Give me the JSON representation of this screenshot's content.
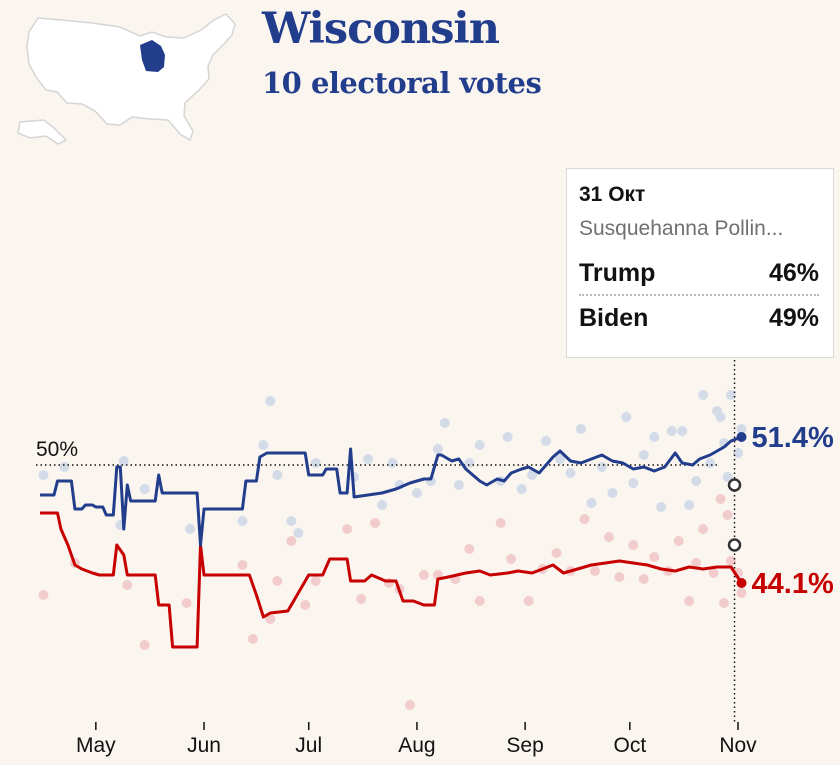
{
  "header": {
    "title": "Wisconsin",
    "subtitle": "10 electoral votes"
  },
  "map": {
    "land_color": "#ffffff",
    "border_color": "#d5d5d5",
    "highlight_color": "#213d8c"
  },
  "tooltip": {
    "date": "31 Окт",
    "pollster": "Susquehanna Pollin...",
    "rows": [
      {
        "name": "Trump",
        "value": "46%"
      },
      {
        "name": "Biden",
        "value": "49%"
      }
    ]
  },
  "chart_data": {
    "type": "line",
    "x_axis": {
      "ticks": [
        "May",
        "Jun",
        "Jul",
        "Aug",
        "Sep",
        "Oct",
        "Nov"
      ],
      "range": [
        "2020-04-15",
        "2020-11-03"
      ]
    },
    "y_axis": {
      "range": [
        36,
        58
      ],
      "tick_labels_shown": false
    },
    "reference_line": {
      "value": 50,
      "label": "50%"
    },
    "grid": false,
    "legend": "none",
    "colors": {
      "biden": "#213d8c",
      "trump": "#c70000",
      "biden_dots": "#d3dbe8",
      "trump_dots": "#f2cccc"
    },
    "series": [
      {
        "end_label": "51.4%",
        "color": "#213d8c",
        "points": [
          [
            "04-15",
            48.5
          ],
          [
            "04-19",
            48.5
          ],
          [
            "04-20",
            49.2
          ],
          [
            "04-24",
            49.2
          ],
          [
            "04-25",
            47.8
          ],
          [
            "04-27",
            47.8
          ],
          [
            "04-28",
            48.0
          ],
          [
            "04-30",
            48.0
          ],
          [
            "05-01",
            47.9
          ],
          [
            "05-03",
            47.9
          ],
          [
            "05-04",
            47.5
          ],
          [
            "05-06",
            47.5
          ],
          [
            "05-07",
            49.9
          ],
          [
            "05-08",
            49.9
          ],
          [
            "05-09",
            46.8
          ],
          [
            "05-10",
            49.0
          ],
          [
            "05-11",
            48.2
          ],
          [
            "05-18",
            48.2
          ],
          [
            "05-19",
            49.5
          ],
          [
            "05-20",
            48.6
          ],
          [
            "05-30",
            48.6
          ],
          [
            "05-31",
            46.0
          ],
          [
            "06-01",
            47.8
          ],
          [
            "06-12",
            47.8
          ],
          [
            "06-13",
            49.2
          ],
          [
            "06-16",
            49.2
          ],
          [
            "06-17",
            50.4
          ],
          [
            "06-19",
            50.6
          ],
          [
            "06-30",
            50.6
          ],
          [
            "07-01",
            49.5
          ],
          [
            "07-05",
            49.5
          ],
          [
            "07-06",
            49.8
          ],
          [
            "07-09",
            49.8
          ],
          [
            "07-10",
            48.6
          ],
          [
            "07-12",
            48.6
          ],
          [
            "07-13",
            50.8
          ],
          [
            "07-14",
            48.4
          ],
          [
            "07-22",
            48.6
          ],
          [
            "07-26",
            48.8
          ],
          [
            "07-30",
            49.1
          ],
          [
            "08-03",
            49.3
          ],
          [
            "08-05",
            49.3
          ],
          [
            "08-07",
            50.5
          ],
          [
            "08-08",
            50.5
          ],
          [
            "08-11",
            50.2
          ],
          [
            "08-13",
            50.3
          ],
          [
            "08-15",
            49.8
          ],
          [
            "08-17",
            49.5
          ],
          [
            "08-19",
            49.2
          ],
          [
            "08-21",
            49.0
          ],
          [
            "08-24",
            49.3
          ],
          [
            "08-26",
            49.2
          ],
          [
            "08-28",
            49.6
          ],
          [
            "08-31",
            49.8
          ],
          [
            "09-02",
            49.9
          ],
          [
            "09-05",
            49.6
          ],
          [
            "09-07",
            50.0
          ],
          [
            "09-09",
            50.4
          ],
          [
            "09-11",
            50.7
          ],
          [
            "09-14",
            50.2
          ],
          [
            "09-17",
            50.1
          ],
          [
            "09-20",
            50.3
          ],
          [
            "09-23",
            50.5
          ],
          [
            "09-26",
            50.2
          ],
          [
            "09-29",
            50.1
          ],
          [
            "10-02",
            49.8
          ],
          [
            "10-05",
            49.9
          ],
          [
            "10-08",
            49.7
          ],
          [
            "10-11",
            49.9
          ],
          [
            "10-14",
            50.6
          ],
          [
            "10-16",
            50.1
          ],
          [
            "10-19",
            50.0
          ],
          [
            "10-21",
            50.3
          ],
          [
            "10-24",
            50.5
          ],
          [
            "10-26",
            50.7
          ],
          [
            "10-28",
            50.9
          ],
          [
            "10-30",
            51.2
          ],
          [
            "11-02",
            51.4
          ]
        ]
      },
      {
        "end_label": "44.1%",
        "color": "#c70000",
        "points": [
          [
            "04-15",
            47.6
          ],
          [
            "04-20",
            47.6
          ],
          [
            "04-21",
            46.8
          ],
          [
            "04-23",
            46.0
          ],
          [
            "04-25",
            45.0
          ],
          [
            "04-27",
            44.8
          ],
          [
            "04-30",
            44.6
          ],
          [
            "05-02",
            44.5
          ],
          [
            "05-06",
            44.5
          ],
          [
            "05-07",
            46.0
          ],
          [
            "05-09",
            45.5
          ],
          [
            "05-10",
            44.5
          ],
          [
            "05-14",
            44.5
          ],
          [
            "05-18",
            44.5
          ],
          [
            "05-19",
            43.0
          ],
          [
            "05-22",
            43.0
          ],
          [
            "05-23",
            40.9
          ],
          [
            "05-30",
            40.9
          ],
          [
            "05-31",
            46.0
          ],
          [
            "06-01",
            44.5
          ],
          [
            "06-14",
            44.5
          ],
          [
            "06-16",
            43.5
          ],
          [
            "06-18",
            42.4
          ],
          [
            "06-20",
            42.6
          ],
          [
            "06-25",
            42.7
          ],
          [
            "06-27",
            43.3
          ],
          [
            "07-01",
            44.5
          ],
          [
            "07-05",
            44.5
          ],
          [
            "07-07",
            45.3
          ],
          [
            "07-12",
            45.3
          ],
          [
            "07-13",
            44.2
          ],
          [
            "07-17",
            44.2
          ],
          [
            "07-19",
            44.5
          ],
          [
            "07-23",
            44.2
          ],
          [
            "07-26",
            44.2
          ],
          [
            "07-28",
            43.2
          ],
          [
            "07-31",
            43.2
          ],
          [
            "08-03",
            43.0
          ],
          [
            "08-06",
            43.0
          ],
          [
            "08-07",
            44.3
          ],
          [
            "08-10",
            44.4
          ],
          [
            "08-15",
            44.6
          ],
          [
            "08-19",
            44.7
          ],
          [
            "08-22",
            44.5
          ],
          [
            "08-27",
            44.6
          ],
          [
            "08-30",
            44.7
          ],
          [
            "09-03",
            44.6
          ],
          [
            "09-06",
            44.8
          ],
          [
            "09-09",
            45.0
          ],
          [
            "09-12",
            44.6
          ],
          [
            "09-16",
            44.8
          ],
          [
            "09-20",
            45.0
          ],
          [
            "09-24",
            45.1
          ],
          [
            "09-28",
            45.2
          ],
          [
            "10-02",
            45.1
          ],
          [
            "10-06",
            45.0
          ],
          [
            "10-10",
            44.8
          ],
          [
            "10-14",
            44.7
          ],
          [
            "10-18",
            44.9
          ],
          [
            "10-22",
            44.8
          ],
          [
            "10-26",
            44.9
          ],
          [
            "10-30",
            44.9
          ],
          [
            "11-02",
            44.1
          ]
        ]
      }
    ],
    "poll_dots": {
      "biden": [
        [
          "04-16",
          49.5
        ],
        [
          "04-22",
          49.9
        ],
        [
          "04-25",
          45.1
        ],
        [
          "05-08",
          47.0
        ],
        [
          "05-09",
          50.2
        ],
        [
          "05-15",
          48.8
        ],
        [
          "05-28",
          46.8
        ],
        [
          "06-12",
          47.2
        ],
        [
          "06-18",
          51.0
        ],
        [
          "06-20",
          53.2
        ],
        [
          "06-22",
          49.5
        ],
        [
          "06-26",
          47.2
        ],
        [
          "06-28",
          46.6
        ],
        [
          "07-03",
          50.1
        ],
        [
          "07-14",
          49.4
        ],
        [
          "07-18",
          50.3
        ],
        [
          "07-22",
          48.0
        ],
        [
          "07-25",
          50.1
        ],
        [
          "07-27",
          49.0
        ],
        [
          "08-01",
          48.6
        ],
        [
          "08-05",
          49.2
        ],
        [
          "08-07",
          50.8
        ],
        [
          "08-09",
          52.1
        ],
        [
          "08-13",
          49.0
        ],
        [
          "08-16",
          50.1
        ],
        [
          "08-19",
          51.0
        ],
        [
          "08-25",
          49.2
        ],
        [
          "08-27",
          51.4
        ],
        [
          "08-31",
          48.8
        ],
        [
          "09-03",
          49.5
        ],
        [
          "09-07",
          51.2
        ],
        [
          "09-11",
          50.3
        ],
        [
          "09-14",
          49.6
        ],
        [
          "09-17",
          51.8
        ],
        [
          "09-20",
          48.1
        ],
        [
          "09-23",
          49.9
        ],
        [
          "09-26",
          48.6
        ],
        [
          "09-30",
          52.4
        ],
        [
          "10-02",
          49.1
        ],
        [
          "10-05",
          50.5
        ],
        [
          "10-08",
          51.4
        ],
        [
          "10-10",
          47.9
        ],
        [
          "10-13",
          51.7
        ],
        [
          "10-16",
          51.7
        ],
        [
          "10-18",
          48.0
        ],
        [
          "10-20",
          49.2
        ],
        [
          "10-22",
          53.5
        ],
        [
          "10-24",
          50.1
        ],
        [
          "10-26",
          52.7
        ],
        [
          "10-27",
          52.4
        ],
        [
          "10-28",
          51.1
        ],
        [
          "10-29",
          49.4
        ],
        [
          "10-30",
          53.5
        ],
        [
          "10-31",
          49.0
        ],
        [
          "11-01",
          50.6
        ],
        [
          "11-02",
          51.8
        ]
      ],
      "trump": [
        [
          "04-16",
          43.5
        ],
        [
          "04-25",
          45.1
        ],
        [
          "05-10",
          44.0
        ],
        [
          "05-15",
          41.0
        ],
        [
          "05-27",
          43.1
        ],
        [
          "06-12",
          45.0
        ],
        [
          "06-15",
          41.3
        ],
        [
          "06-20",
          42.3
        ],
        [
          "06-22",
          44.2
        ],
        [
          "06-26",
          46.2
        ],
        [
          "06-30",
          43.0
        ],
        [
          "07-03",
          44.2
        ],
        [
          "07-12",
          46.8
        ],
        [
          "07-16",
          43.3
        ],
        [
          "07-20",
          47.1
        ],
        [
          "07-24",
          44.1
        ],
        [
          "07-27",
          43.8
        ],
        [
          "07-30",
          38.0
        ],
        [
          "08-03",
          44.5
        ],
        [
          "08-07",
          44.5
        ],
        [
          "08-12",
          44.3
        ],
        [
          "08-16",
          45.8
        ],
        [
          "08-19",
          43.2
        ],
        [
          "08-25",
          47.1
        ],
        [
          "08-28",
          45.3
        ],
        [
          "09-02",
          43.2
        ],
        [
          "09-06",
          44.8
        ],
        [
          "09-10",
          45.6
        ],
        [
          "09-14",
          44.7
        ],
        [
          "09-18",
          47.3
        ],
        [
          "09-21",
          44.7
        ],
        [
          "09-25",
          46.4
        ],
        [
          "09-28",
          44.4
        ],
        [
          "10-02",
          46.0
        ],
        [
          "10-05",
          44.3
        ],
        [
          "10-08",
          45.4
        ],
        [
          "10-12",
          44.7
        ],
        [
          "10-15",
          46.2
        ],
        [
          "10-18",
          43.2
        ],
        [
          "10-20",
          45.1
        ],
        [
          "10-22",
          46.8
        ],
        [
          "10-25",
          44.6
        ],
        [
          "10-27",
          48.3
        ],
        [
          "10-28",
          43.1
        ],
        [
          "10-29",
          47.5
        ],
        [
          "10-30",
          45.2
        ],
        [
          "10-31",
          46.0
        ],
        [
          "11-01",
          44.6
        ],
        [
          "11-02",
          43.6
        ]
      ],
      "selected": [
        [
          "10-31",
          46.0
        ],
        [
          "10-31",
          49.0
        ]
      ]
    }
  }
}
